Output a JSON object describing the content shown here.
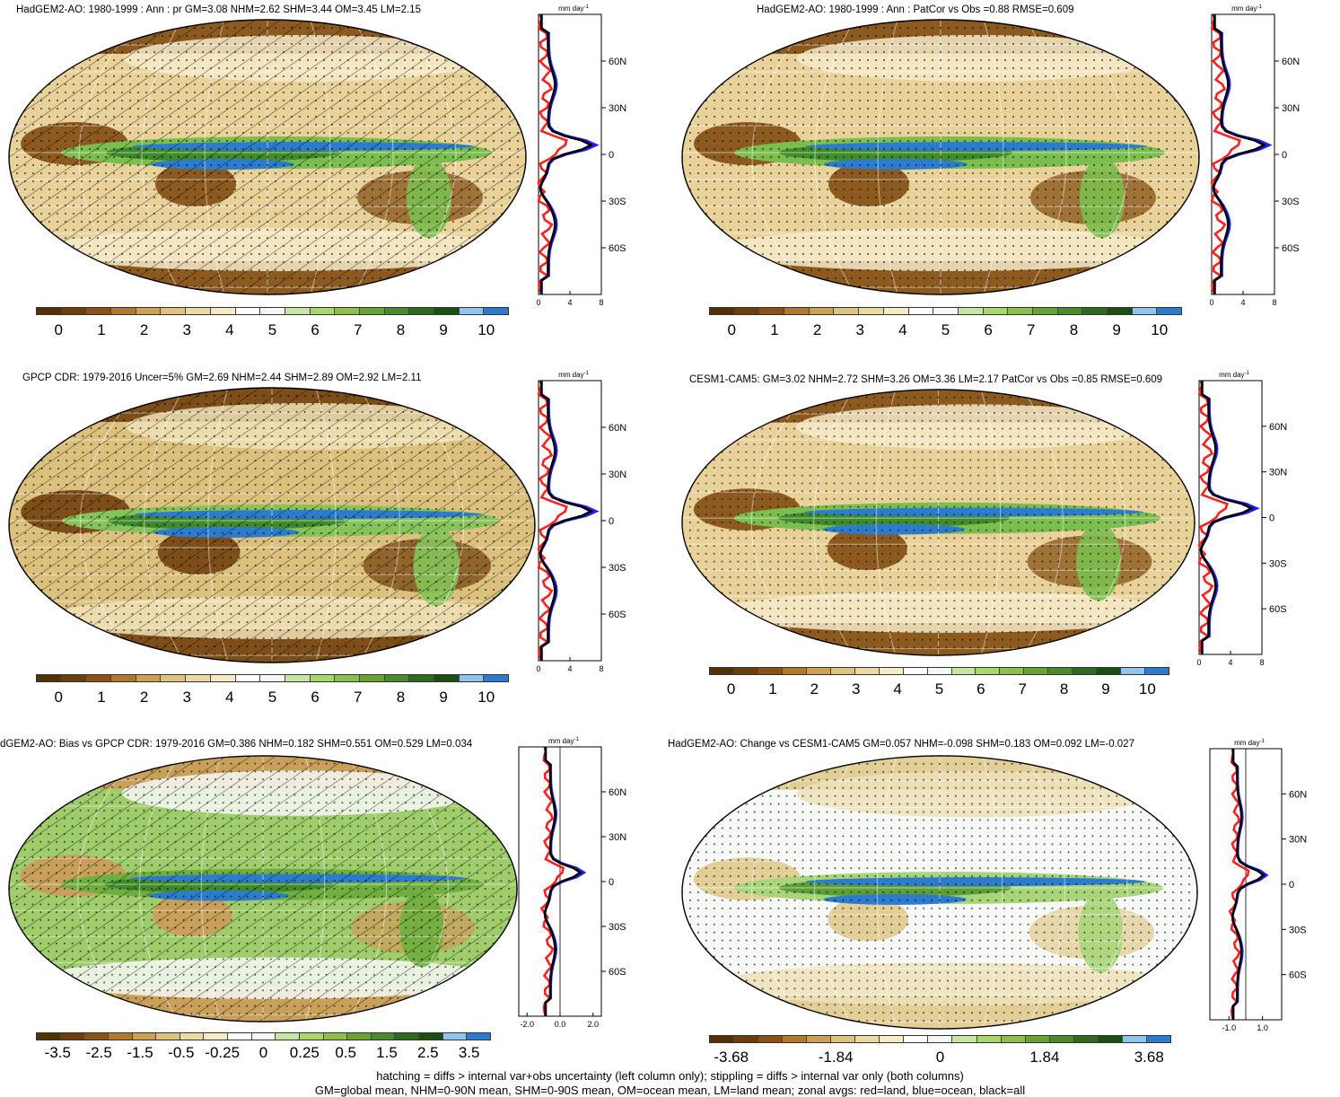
{
  "colorbar_colors": [
    "#543005",
    "#6b3e0b",
    "#8c5114",
    "#b07a2a",
    "#cda152",
    "#dfc27d",
    "#ecd9a3",
    "#f5ebc7",
    "#ffffff",
    "#f3f8f3",
    "#c7e6a3",
    "#a6d96a",
    "#8cc04a",
    "#66a333",
    "#4a8a2a",
    "#2e6b1e",
    "#1b4f12",
    "#92c5ee",
    "#2c7bcc"
  ],
  "zonal_colors": {
    "land": "#ff2020",
    "ocean": "#2020ff",
    "all": "#000000"
  },
  "unit_label": "mm day",
  "unit_exp": "-1",
  "lat_labels": [
    "60N",
    "30N",
    "0",
    "30S",
    "60S"
  ],
  "panels": [
    {
      "title": "HadGEM2-AO: 1980-1999 : Ann : pr GM=3.08 NHM=2.62 SHM=3.44 OM=3.45 LM=2.15",
      "pattern": "hatch",
      "cbar_labels": [
        "0",
        "1",
        "2",
        "3",
        "4",
        "5",
        "6",
        "7",
        "8",
        "9",
        "10"
      ],
      "zonal_ticks": [
        "0",
        "4",
        "8"
      ]
    },
    {
      "title": "HadGEM2-AO: 1980-1999 : Ann : PatCor vs Obs =0.88 RMSE=0.609",
      "pattern": "stipple",
      "cbar_labels": [
        "0",
        "1",
        "2",
        "3",
        "4",
        "5",
        "6",
        "7",
        "8",
        "9",
        "10"
      ],
      "zonal_ticks": [
        "0",
        "4",
        "8"
      ]
    },
    {
      "title": "GPCP CDR: 1979-2016 Uncer=5% GM=2.69 NHM=2.44 SHM=2.89 OM=2.92 LM=2.11",
      "pattern": "hatch",
      "cbar_labels": [
        "0",
        "1",
        "2",
        "3",
        "4",
        "5",
        "6",
        "7",
        "8",
        "9",
        "10"
      ],
      "zonal_ticks": [
        "0",
        "4",
        "8"
      ]
    },
    {
      "title": "CESM1-CAM5: GM=3.02 NHM=2.72 SHM=3.26 OM=3.36 LM=2.17 PatCor vs Obs =0.85 RMSE=0.609",
      "pattern": "stipple",
      "cbar_labels": [
        "0",
        "1",
        "2",
        "3",
        "4",
        "5",
        "6",
        "7",
        "8",
        "9",
        "10"
      ],
      "zonal_ticks": [
        "0",
        "4",
        "8"
      ]
    },
    {
      "title": "dGEM2-AO: Bias vs GPCP CDR: 1979-2016 GM=0.386 NHM=0.182 SHM=0.551 OM=0.529 LM=0.034",
      "pattern": "hatch",
      "cbar_labels": [
        "-3.5",
        "-2.5",
        "-1.5",
        "-0.5",
        "-0.25",
        "0",
        "0.25",
        "0.5",
        "1.5",
        "2.5",
        "3.5"
      ],
      "zonal_ticks": [
        "-2.0",
        "0.0",
        "2.0"
      ]
    },
    {
      "title": "HadGEM2-AO: Change vs CESM1-CAM5 GM=0.057 NHM=-0.098 SHM=0.183 OM=0.092 LM=-0.027",
      "pattern": "stipple",
      "cbar_labels": [
        "-3.68",
        "-1.84",
        "0",
        "1.84",
        "3.68"
      ],
      "zonal_ticks": [
        "-1.0",
        "1.0"
      ]
    }
  ],
  "footer": {
    "line1": "hatching = diffs > internal var+obs uncertainty (left column only); stippling = diffs > internal var only (both columns)",
    "line2": "GM=global mean, NHM=0-90N mean, SHM=0-90S mean, OM=ocean mean, LM=land mean; zonal avgs: red=land, blue=ocean, black=all"
  }
}
